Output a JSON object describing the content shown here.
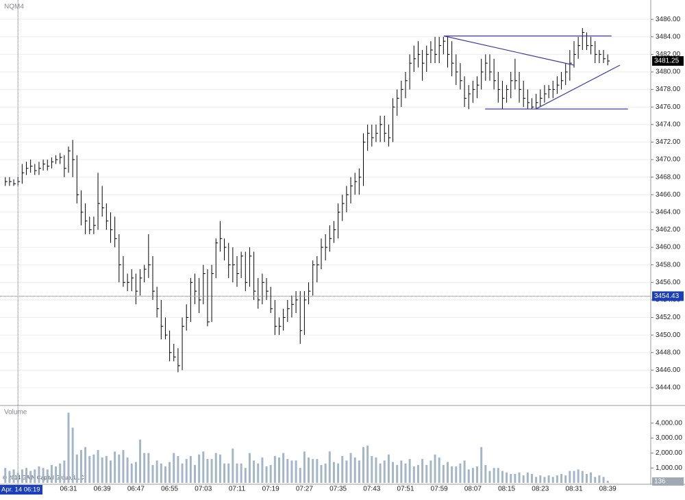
{
  "chart_data": [
    {
      "type": "ohlc",
      "title": "NQM4",
      "color": "#000000",
      "grid": true,
      "categories": [
        null,
        null,
        null,
        "Apr. 14 06:19",
        null,
        null,
        null,
        null,
        null,
        null,
        null,
        null,
        null,
        null,
        null,
        "06:31",
        null,
        null,
        null,
        null,
        null,
        null,
        null,
        "06:39",
        null,
        null,
        null,
        null,
        null,
        null,
        null,
        "06:47",
        null,
        null,
        null,
        null,
        null,
        null,
        null,
        "06:55",
        null,
        null,
        null,
        null,
        null,
        null,
        null,
        "07:03",
        null,
        null,
        null,
        null,
        null,
        null,
        null,
        "07:11",
        null,
        null,
        null,
        null,
        null,
        null,
        null,
        "07:19",
        null,
        null,
        null,
        null,
        null,
        null,
        null,
        "07:27",
        null,
        null,
        null,
        null,
        null,
        null,
        null,
        "07:35",
        null,
        null,
        null,
        null,
        null,
        null,
        null,
        "07:43",
        null,
        null,
        null,
        null,
        null,
        null,
        null,
        "07:51",
        null,
        null,
        null,
        null,
        null,
        null,
        null,
        "07:59",
        null,
        null,
        null,
        null,
        null,
        null,
        null,
        "08:07",
        null,
        null,
        null,
        null,
        null,
        null,
        null,
        "08:15",
        null,
        null,
        null,
        null,
        null,
        null,
        null,
        "08:23",
        null,
        null,
        null,
        null,
        null,
        null,
        null,
        "08:31",
        null,
        null,
        null,
        null,
        null,
        null,
        null,
        "08:39"
      ],
      "high": [
        3468,
        3468,
        3467.75,
        3468,
        3469.5,
        3469.75,
        3470,
        3469.5,
        3469.75,
        3470,
        3470,
        3470.25,
        3470.5,
        3470.75,
        3470.5,
        3471.5,
        3472.25,
        3470.5,
        3466.5,
        3465,
        3463.5,
        3463.5,
        3468.5,
        3467,
        3465,
        3464,
        3463.5,
        3461.5,
        3459,
        3457,
        3457.5,
        3457,
        3457.5,
        3458,
        3461.5,
        3459,
        3455.5,
        3454,
        3452,
        3450.5,
        3449,
        3448.5,
        3452,
        3453.5,
        3456.5,
        3457,
        3456.5,
        3458,
        3457.5,
        3458,
        3461,
        3463,
        3461,
        3460.5,
        3460,
        3459,
        3459.5,
        3459.5,
        3460,
        3459.5,
        3456.5,
        3457,
        3456.5,
        3455.5,
        3454,
        3452,
        3453,
        3454,
        3454.5,
        3455,
        3455,
        3455,
        3456,
        3458.5,
        3459,
        3461,
        3461.5,
        3462.5,
        3463,
        3465,
        3466,
        3467,
        3468,
        3468.5,
        3469,
        3473,
        3474,
        3474,
        3474,
        3475,
        3475,
        3474,
        3477,
        3478,
        3479,
        3480,
        3482,
        3483,
        3483.5,
        3482.5,
        3483,
        3483.5,
        3484,
        3484,
        3484,
        3484,
        3483.5,
        3482,
        3481,
        3479.5,
        3478.5,
        3479,
        3479.5,
        3481.5,
        3482,
        3482,
        3481.5,
        3480,
        3479,
        3478.5,
        3480,
        3481.5,
        3480,
        3479,
        3478,
        3477,
        3477.5,
        3478,
        3478.5,
        3478.5,
        3479,
        3479.5,
        3480,
        3481,
        3482.5,
        3483.5,
        3484,
        3485,
        3484.5,
        3484,
        3483.5,
        3482.5,
        3482.5,
        3482
      ],
      "low": [
        3467,
        3467,
        3467,
        3467,
        3467.25,
        3468.25,
        3468.5,
        3468.25,
        3468.25,
        3468.75,
        3468.75,
        3469,
        3469.5,
        3469.5,
        3468,
        3468.5,
        3468,
        3465,
        3462.5,
        3461.5,
        3461.5,
        3461.5,
        3462,
        3463.5,
        3462,
        3460.5,
        3460,
        3456,
        3455.5,
        3455,
        3455,
        3453.5,
        3454.5,
        3456,
        3456.5,
        3454,
        3452,
        3449.5,
        3449.5,
        3447,
        3447,
        3445.75,
        3446,
        3450.5,
        3451.5,
        3453.5,
        3452.5,
        3453.5,
        3451,
        3451.5,
        3456.5,
        3459.5,
        3458.5,
        3456.5,
        3456,
        3455.5,
        3456.5,
        3455,
        3455.5,
        3454,
        3453,
        3453.5,
        3454,
        3452.5,
        3450,
        3450,
        3450.5,
        3451.5,
        3452,
        3452.5,
        3449,
        3450,
        3453.5,
        3454.5,
        3456,
        3457.5,
        3458.5,
        3459.5,
        3460.5,
        3461,
        3463,
        3464,
        3465,
        3466,
        3466,
        3467,
        3471,
        3471.5,
        3472,
        3472,
        3472,
        3471.5,
        3472,
        3475,
        3476,
        3477,
        3478,
        3480,
        3480.5,
        3479,
        3480,
        3481,
        3481,
        3481,
        3482,
        3480.5,
        3479.5,
        3478.5,
        3478,
        3476,
        3475.75,
        3476.5,
        3477,
        3478,
        3479,
        3479,
        3478,
        3476.5,
        3475.75,
        3476.5,
        3477,
        3478,
        3476.5,
        3476,
        3475.75,
        3475.75,
        3475.75,
        3476,
        3476.5,
        3477,
        3477,
        3477.5,
        3478,
        3478.5,
        3479,
        3480.5,
        3481.5,
        3482.5,
        3482.5,
        3482,
        3481,
        3481,
        3481,
        3480.75
      ],
      "close": [
        3467.5,
        3467.5,
        3467.25,
        3467.5,
        3468.5,
        3469,
        3469.25,
        3468.75,
        3469,
        3469.5,
        3469.25,
        3469.75,
        3470,
        3470.25,
        3469,
        3471,
        3470,
        3466,
        3464,
        3463,
        3462,
        3462.5,
        3465,
        3464.5,
        3463,
        3462,
        3461,
        3458,
        3456,
        3456,
        3456.5,
        3455,
        3456.5,
        3457.5,
        3458,
        3455,
        3453,
        3451,
        3450,
        3448,
        3447.5,
        3446.5,
        3451,
        3452,
        3456,
        3455,
        3454,
        3457,
        3451.5,
        3457,
        3460.5,
        3461,
        3460,
        3458,
        3458,
        3457,
        3459,
        3456,
        3459,
        3455,
        3454,
        3456,
        3455,
        3453,
        3451,
        3451,
        3452,
        3453,
        3453.5,
        3454,
        3450.5,
        3454,
        3455,
        3458,
        3458,
        3460,
        3460,
        3461,
        3462,
        3464,
        3465,
        3466,
        3467,
        3467.5,
        3468,
        3472,
        3473,
        3472.5,
        3473,
        3474,
        3473,
        3472.5,
        3476,
        3477,
        3478,
        3479,
        3481,
        3481.5,
        3482,
        3481,
        3482,
        3482.5,
        3482,
        3483,
        3483.5,
        3482,
        3481,
        3480,
        3479,
        3477,
        3477.5,
        3478,
        3478.5,
        3480,
        3481,
        3480,
        3479,
        3478,
        3477,
        3478,
        3479,
        3479,
        3478,
        3477,
        3476.5,
        3476,
        3476.5,
        3477,
        3477.5,
        3478,
        3478,
        3478.5,
        3479,
        3480,
        3481,
        3482,
        3483,
        3484.5,
        3483,
        3483,
        3482,
        3482,
        3481.5,
        3481.25
      ],
      "ylim": [
        3442.2,
        3488.2
      ],
      "yticks": [
        {
          "value": 3444,
          "label": "3444.00"
        },
        {
          "value": 3446,
          "label": "3446.00"
        },
        {
          "value": 3448,
          "label": "3448.00"
        },
        {
          "value": 3450,
          "label": "3450.00"
        },
        {
          "value": 3452,
          "label": "3452.00"
        },
        {
          "value": 3454,
          "label": "3454.00"
        },
        {
          "value": 3456,
          "label": "3456.00"
        },
        {
          "value": 3458,
          "label": "3458.00"
        },
        {
          "value": 3460,
          "label": "3460.00"
        },
        {
          "value": 3462,
          "label": "3462.00"
        },
        {
          "value": 3464,
          "label": "3464.00"
        },
        {
          "value": 3466,
          "label": "3466.00"
        },
        {
          "value": 3468,
          "label": "3468.00"
        },
        {
          "value": 3470,
          "label": "3470.00"
        },
        {
          "value": 3472,
          "label": "3472.00"
        },
        {
          "value": 3474,
          "label": "3474.00"
        },
        {
          "value": 3476,
          "label": "3476.00"
        },
        {
          "value": 3478,
          "label": "3478.00"
        },
        {
          "value": 3480,
          "label": "3480.00"
        },
        {
          "value": 3482,
          "label": "3482.00"
        },
        {
          "value": 3484,
          "label": "3484.00"
        },
        {
          "value": 3486,
          "label": "3486.00"
        }
      ],
      "crosshair": {
        "x": "Apr. 14 06:19",
        "y": 3454.43
      },
      "trendlines": {
        "color": "#3b3ba3",
        "lines": [
          {
            "x": [
              104.1,
              143.9
            ],
            "y": [
              3484.1,
              3484.1
            ]
          },
          {
            "x": [
              104.1,
              135.0
            ],
            "y": [
              3484.1,
              3480.77
            ]
          },
          {
            "x": [
              113.9,
              147.8
            ],
            "y": [
              3475.77,
              3475.77
            ]
          },
          {
            "x": [
              125.9,
              145.9
            ],
            "y": [
              3475.77,
              3480.77
            ]
          }
        ]
      }
    },
    {
      "type": "bar",
      "title": "Volume",
      "color": "#a3b6c8",
      "note": "© 2014 GAIN Capital Group, LLC",
      "values": [
        1000,
        800,
        900,
        700,
        900,
        1000,
        800,
        900,
        1100,
        1000,
        900,
        1200,
        1100,
        1300,
        1500,
        4700,
        3700,
        1900,
        2200,
        2400,
        1800,
        1900,
        2200,
        1700,
        1800,
        1500,
        2100,
        1900,
        2200,
        1700,
        1300,
        1400,
        2900,
        2000,
        2000,
        1200,
        1500,
        1300,
        1100,
        1400,
        2000,
        1800,
        1300,
        1600,
        1800,
        1200,
        1900,
        2100,
        1600,
        1600,
        2000,
        1900,
        1300,
        1300,
        2300,
        1300,
        1300,
        1000,
        2000,
        1500,
        1300,
        1700,
        1100,
        1200,
        1800,
        1700,
        2000,
        1600,
        1500,
        1500,
        1000,
        2100,
        1700,
        1600,
        1600,
        1200,
        1300,
        2100,
        1400,
        1300,
        1800,
        1500,
        2000,
        1700,
        1500,
        2400,
        2500,
        1800,
        1700,
        1300,
        1500,
        1900,
        1400,
        1200,
        1500,
        1300,
        1600,
        1100,
        1200,
        1600,
        1200,
        1500,
        1900,
        1700,
        1200,
        1400,
        1100,
        1100,
        1300,
        1500,
        900,
        1000,
        1100,
        2400,
        1200,
        800,
        1000,
        1000,
        800,
        700,
        600,
        600,
        700,
        500,
        700,
        600,
        400,
        500,
        400,
        500,
        400,
        500,
        600,
        500,
        800,
        800,
        900,
        800,
        600,
        700,
        400,
        500,
        400,
        136
      ],
      "ylim": [
        0,
        5000
      ],
      "yticks": [
        {
          "value": 1000,
          "label": "1,000.00"
        },
        {
          "value": 2000,
          "label": "2,000.00"
        },
        {
          "value": 3000,
          "label": "3,000.00"
        },
        {
          "value": 4000,
          "label": "4,000.00"
        }
      ]
    }
  ]
}
